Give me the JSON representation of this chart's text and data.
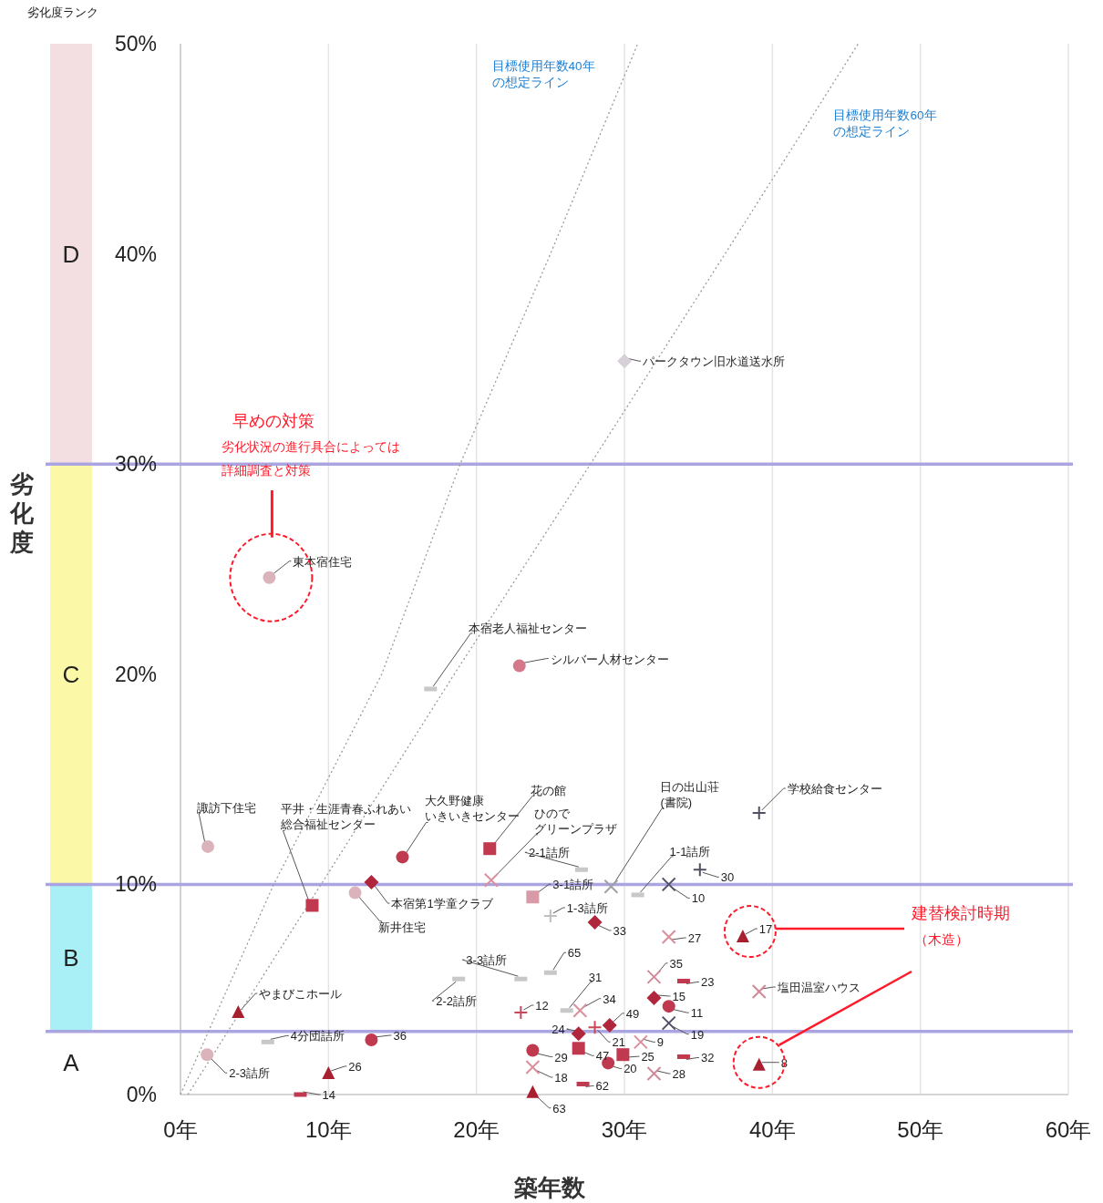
{
  "chart_data": {
    "type": "scatter",
    "xlabel": "築年数",
    "ylabel": "劣化度",
    "xlim": [
      0,
      60
    ],
    "ylim": [
      0,
      50
    ],
    "xticks": [
      {
        "value": 0,
        "label": "0年"
      },
      {
        "value": 10,
        "label": "10年"
      },
      {
        "value": 20,
        "label": "20年"
      },
      {
        "value": 30,
        "label": "30年"
      },
      {
        "value": 40,
        "label": "40年"
      },
      {
        "value": 50,
        "label": "50年"
      },
      {
        "value": 60,
        "label": "60年"
      }
    ],
    "yticks": [
      {
        "value": 0,
        "label": "0%"
      },
      {
        "value": 10,
        "label": "10%"
      },
      {
        "value": 20,
        "label": "20%"
      },
      {
        "value": 30,
        "label": "30%"
      },
      {
        "value": 40,
        "label": "40%"
      },
      {
        "value": 50,
        "label": "50%"
      }
    ],
    "grid": "x",
    "ref_lines": [
      {
        "axis": "y",
        "value": 3,
        "color": "#aaa4e0"
      },
      {
        "axis": "y",
        "value": 10,
        "color": "#aaa4e0"
      },
      {
        "axis": "y",
        "value": 30,
        "color": "#aaa4e0"
      }
    ],
    "series": [
      {
        "type": "line",
        "name": "目標使用年数40年の想定ライン",
        "color": "#9a9a9a",
        "line_style": "dotted",
        "marker": "none",
        "x": [
          0,
          6.3,
          13.6,
          18.9,
          25,
          30.9
        ],
        "values": [
          0,
          10,
          20,
          30,
          40,
          50
        ]
      },
      {
        "type": "line",
        "name": "目標使用年数60年の想定ライン",
        "color": "#9a9a9a",
        "line_style": "dotted",
        "marker": "none",
        "x": [
          0.5,
          9.5,
          18.5,
          27.7,
          36.8,
          45.8
        ],
        "values": [
          0,
          10,
          20,
          30,
          40,
          50
        ]
      },
      {
        "marker": "circle",
        "color": "#c0394f",
        "x": [
          15,
          12.9,
          23.8,
          28.9,
          33
        ],
        "values": [
          11.3,
          2.6,
          2.1,
          1.5,
          4.2
        ]
      },
      {
        "marker": "circle",
        "color": "#d4788a",
        "x": [
          22.9
        ],
        "values": [
          20.4
        ]
      },
      {
        "marker": "circle",
        "color": "#dbb4bb",
        "x": [
          1.85,
          11.8,
          1.8,
          6
        ],
        "values": [
          11.8,
          9.6,
          1.9,
          24.6
        ]
      },
      {
        "marker": "square",
        "color": "#c0394f",
        "x": [
          8.9,
          20.9,
          26.9,
          29.9
        ],
        "values": [
          9.0,
          11.7,
          2.2,
          1.9
        ]
      },
      {
        "marker": "square",
        "color": "#d99aa8",
        "x": [
          23.8
        ],
        "values": [
          9.4
        ]
      },
      {
        "marker": "diamond",
        "color": "#b0263c",
        "x": [
          12.9,
          28,
          32,
          26.9,
          29
        ],
        "values": [
          10.1,
          8.2,
          4.6,
          2.9,
          3.3
        ]
      },
      {
        "marker": "diamond",
        "color": "#d8d0d8",
        "x": [
          30
        ],
        "values": [
          34.9
        ]
      },
      {
        "marker": "triangle",
        "color": "#a81f30",
        "x": [
          3.9,
          10,
          38,
          39.1,
          23.8
        ],
        "values": [
          3.9,
          1.0,
          7.5,
          1.4,
          0.1
        ]
      },
      {
        "marker": "cross",
        "color": "#d9909c",
        "x": [
          21,
          33,
          31.1,
          27,
          23.8
        ],
        "values": [
          10.2,
          7.5,
          2.5,
          4.0,
          1.3
        ]
      },
      {
        "marker": "cross",
        "color": "#a0a0a8",
        "x": [
          29.1
        ],
        "values": [
          9.9
        ]
      },
      {
        "marker": "plus",
        "color": "#c8485a",
        "x": [
          23,
          28
        ],
        "values": [
          3.9,
          3.2
        ]
      },
      {
        "marker": "plus",
        "color": "#505060",
        "x": [
          39.1,
          35.1
        ],
        "values": [
          13.4,
          10.7
        ]
      },
      {
        "marker": "plus",
        "color": "#c0c0c0",
        "x": [
          25
        ],
        "values": [
          8.5
        ]
      },
      {
        "marker": "cross",
        "color": "#505068",
        "x": [
          33,
          33
        ],
        "values": [
          10.0,
          3.4
        ]
      },
      {
        "marker": "cross",
        "color": "#d08898",
        "x": [
          32,
          32,
          39.1
        ],
        "values": [
          5.6,
          1.0,
          4.9
        ]
      },
      {
        "color": "#c0394f",
        "x": [
          34,
          34,
          27.2,
          8.1
        ],
        "values": [
          5.4,
          1.8,
          0.5,
          0
        ]
      },
      {
        "color": "#c8c8c8",
        "x": [
          27.1,
          30.9,
          25,
          23,
          18.8,
          5.9,
          26.1,
          16.9
        ],
        "values": [
          10.7,
          9.5,
          5.8,
          5.5,
          5.5,
          2.5,
          4.0,
          19.3
        ]
      }
    ],
    "annotations": [
      {
        "text": "諏訪下住宅",
        "x": 1.85,
        "y": 11.8
      },
      {
        "text": "平井・生涯青春ふれあい総合福祉センター",
        "x": 8.9,
        "y": 9.0
      },
      {
        "text": "大久野健康いきいきセンター",
        "x": 15,
        "y": 11.3
      },
      {
        "text": "花の館",
        "x": 20.9,
        "y": 11.7
      },
      {
        "text": "ひのでグリーンプラザ",
        "x": 21,
        "y": 10.2
      },
      {
        "text": "本宿第1学童クラブ",
        "x": 12.9,
        "y": 10.1
      },
      {
        "text": "新井住宅",
        "x": 11.8,
        "y": 9.6
      },
      {
        "text": "2-1詰所",
        "x": 27.1,
        "y": 10.7
      },
      {
        "text": "3-1詰所",
        "x": 23.8,
        "y": 9.4
      },
      {
        "text": "日の出山荘(書院)",
        "x": 29.1,
        "y": 9.9
      },
      {
        "text": "1-3詰所",
        "x": 25,
        "y": 8.5
      },
      {
        "text": "33",
        "x": 28,
        "y": 8.2
      },
      {
        "text": "1-1詰所",
        "x": 30.9,
        "y": 9.5
      },
      {
        "text": "10",
        "x": 33,
        "y": 10.0
      },
      {
        "text": "30",
        "x": 35.1,
        "y": 10.7
      },
      {
        "text": "学校給食センター",
        "x": 39.1,
        "y": 13.4
      },
      {
        "text": "27",
        "x": 33,
        "y": 7.5
      },
      {
        "text": "17",
        "x": 38,
        "y": 7.5
      },
      {
        "text": "塩田温室ハウス",
        "x": 39.1,
        "y": 4.9
      },
      {
        "text": "35",
        "x": 32,
        "y": 5.6
      },
      {
        "text": "23",
        "x": 34,
        "y": 5.4
      },
      {
        "text": "15",
        "x": 32,
        "y": 4.6
      },
      {
        "text": "11",
        "x": 33,
        "y": 4.2
      },
      {
        "text": "19",
        "x": 33,
        "y": 3.4
      },
      {
        "text": "9",
        "x": 31.1,
        "y": 2.5
      },
      {
        "text": "32",
        "x": 34,
        "y": 1.8
      },
      {
        "text": "8",
        "x": 39.1,
        "y": 1.4
      },
      {
        "text": "28",
        "x": 32,
        "y": 1.0
      },
      {
        "text": "25",
        "x": 29.9,
        "y": 1.9
      },
      {
        "text": "20",
        "x": 28.9,
        "y": 1.5
      },
      {
        "text": "47",
        "x": 26.9,
        "y": 2.2
      },
      {
        "text": "24",
        "x": 26.9,
        "y": 2.9
      },
      {
        "text": "49",
        "x": 29,
        "y": 3.3
      },
      {
        "text": "21",
        "x": 28,
        "y": 3.2
      },
      {
        "text": "34",
        "x": 27,
        "y": 4.0
      },
      {
        "text": "31",
        "x": 26.1,
        "y": 4.0
      },
      {
        "text": "12",
        "x": 23,
        "y": 3.9
      },
      {
        "text": "29",
        "x": 23.8,
        "y": 2.1
      },
      {
        "text": "18",
        "x": 23.8,
        "y": 1.3
      },
      {
        "text": "63",
        "x": 23.8,
        "y": 0.1
      },
      {
        "text": "62",
        "x": 27.2,
        "y": 0.5
      },
      {
        "text": "65",
        "x": 25,
        "y": 5.8
      },
      {
        "text": "3-3詰所",
        "x": 23,
        "y": 5.5
      },
      {
        "text": "2-2詰所",
        "x": 18.8,
        "y": 5.5
      },
      {
        "text": "やまびこホール",
        "x": 3.9,
        "y": 3.9
      },
      {
        "text": "4分団詰所",
        "x": 5.9,
        "y": 2.5
      },
      {
        "text": "36",
        "x": 12.9,
        "y": 2.6
      },
      {
        "text": "2-3詰所",
        "x": 1.8,
        "y": 1.9
      },
      {
        "text": "26",
        "x": 10,
        "y": 1.0
      },
      {
        "text": "14",
        "x": 8.1,
        "y": 0
      },
      {
        "text": "東本宿住宅",
        "x": 6,
        "y": 24.6
      },
      {
        "text": "本宿老人福祉センター",
        "x": 16.9,
        "y": 19.3
      },
      {
        "text": "シルバー人材センター",
        "x": 22.9,
        "y": 20.4
      },
      {
        "text": "パークタウン旧水道送水所",
        "x": 30,
        "y": 34.9
      },
      "劣化度ランク",
      "早めの対策",
      "劣化状況の進行具合によっては",
      "詳細調査と対策",
      "建替検討時期",
      "（木造）",
      "D",
      "C",
      "B",
      "A"
    ]
  }
}
